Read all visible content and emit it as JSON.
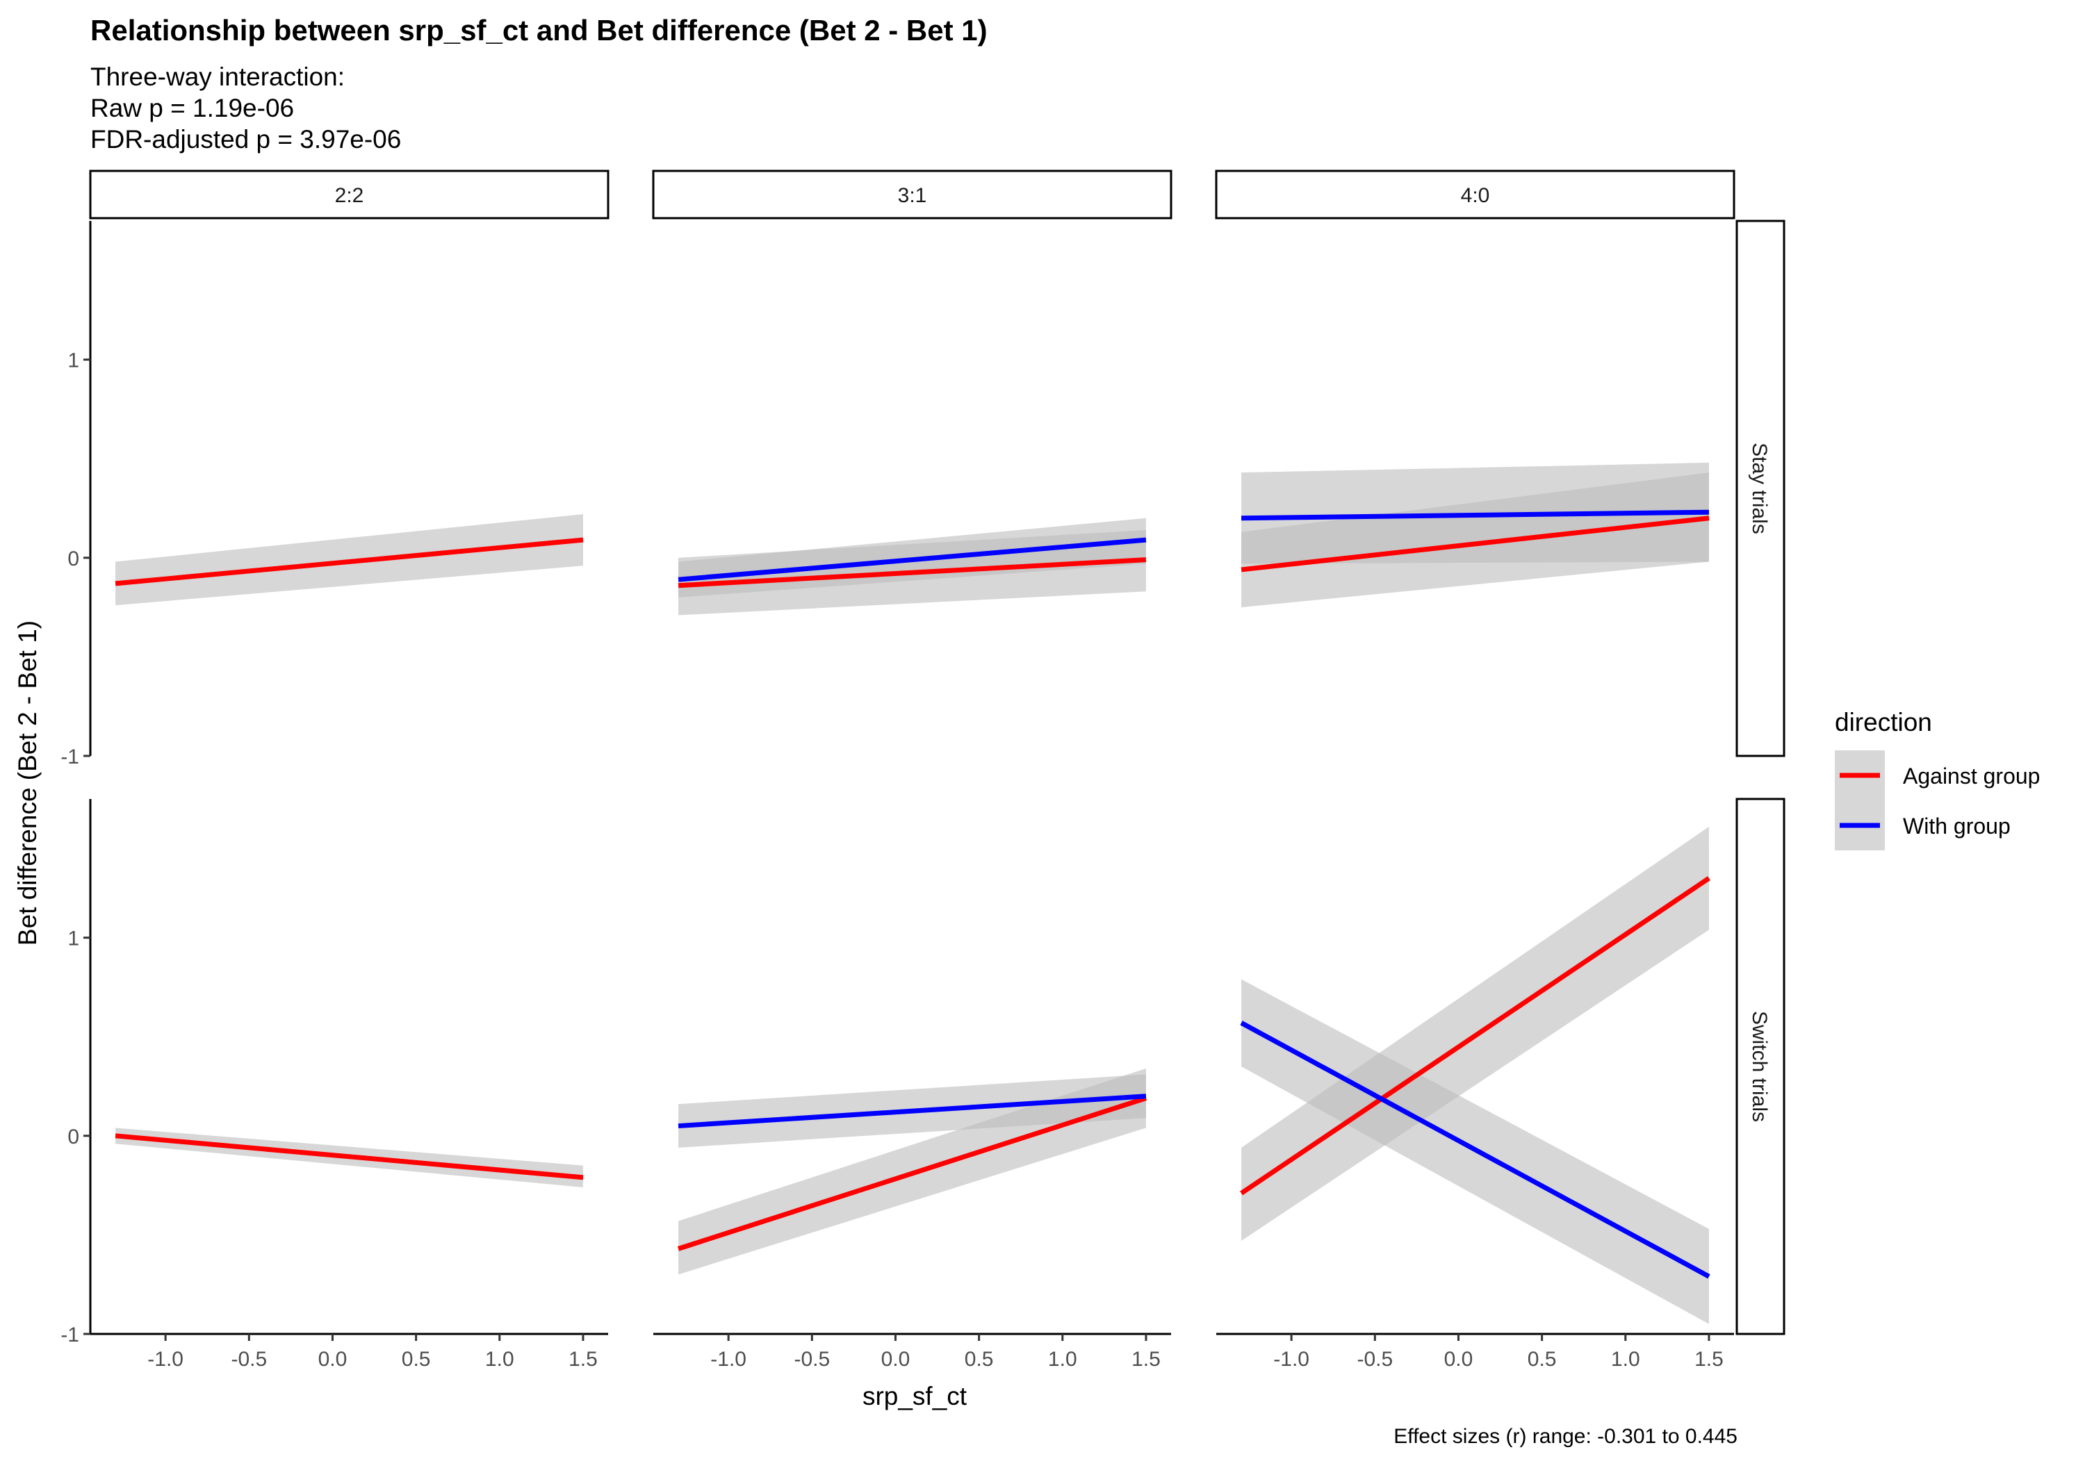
{
  "chart_data": {
    "type": "line",
    "title": "Relationship between srp_sf_ct and Bet difference (Bet 2 - Bet 1)",
    "subtitle": [
      "Three-way interaction:",
      "Raw p = 1.19e-06",
      "FDR-adjusted p = 3.97e-06"
    ],
    "xlabel": "srp_sf_ct",
    "ylabel": "Bet difference (Bet 2 - Bet 1)",
    "caption": "Effect sizes (r) range: -0.301 to 0.445",
    "xlim": [
      -1.45,
      1.65
    ],
    "ylim": [
      -1.0,
      1.7
    ],
    "x_ticks": [
      -1.0,
      -0.5,
      0.0,
      0.5,
      1.0,
      1.5
    ],
    "x_tick_labels": [
      "-1.0",
      "-0.5",
      "0.0",
      "0.5",
      "1.0",
      "1.5"
    ],
    "y_ticks": [
      -1,
      0,
      1
    ],
    "y_tick_labels": [
      "-1",
      "0",
      "1"
    ],
    "col_facets": [
      "2:2",
      "3:1",
      "4:0"
    ],
    "row_facets": [
      "Stay trials",
      "Switch trials"
    ],
    "legend": {
      "title": "direction",
      "position": "right",
      "entries": [
        {
          "name": "Against group",
          "color": "#ff0000"
        },
        {
          "name": "With group",
          "color": "#0000ff"
        }
      ]
    },
    "ribbon_color": "#bdbdbd",
    "panels": [
      {
        "row": 0,
        "col": 0,
        "series": [
          {
            "name": "Against group",
            "color": "#ff0000",
            "x": [
              -1.3,
              1.5
            ],
            "y": [
              -0.13,
              0.09
            ],
            "lower": [
              -0.24,
              -0.04
            ],
            "upper": [
              -0.02,
              0.22
            ]
          }
        ]
      },
      {
        "row": 0,
        "col": 1,
        "series": [
          {
            "name": "Against group",
            "color": "#ff0000",
            "x": [
              -1.3,
              1.5
            ],
            "y": [
              -0.14,
              -0.01
            ],
            "lower": [
              -0.29,
              -0.17
            ],
            "upper": [
              0.0,
              0.14
            ]
          },
          {
            "name": "With group",
            "color": "#0000ff",
            "x": [
              -1.3,
              1.5
            ],
            "y": [
              -0.11,
              0.09
            ],
            "lower": [
              -0.2,
              -0.03
            ],
            "upper": [
              -0.02,
              0.2
            ]
          }
        ]
      },
      {
        "row": 0,
        "col": 2,
        "series": [
          {
            "name": "Against group",
            "color": "#ff0000",
            "x": [
              -1.3,
              1.5
            ],
            "y": [
              -0.06,
              0.2
            ],
            "lower": [
              -0.25,
              -0.02
            ],
            "upper": [
              0.13,
              0.43
            ]
          },
          {
            "name": "With group",
            "color": "#0000ff",
            "x": [
              -1.3,
              1.5
            ],
            "y": [
              0.2,
              0.23
            ],
            "lower": [
              -0.03,
              -0.02
            ],
            "upper": [
              0.43,
              0.48
            ]
          }
        ]
      },
      {
        "row": 1,
        "col": 0,
        "series": [
          {
            "name": "Against group",
            "color": "#ff0000",
            "x": [
              -1.3,
              1.5
            ],
            "y": [
              0.0,
              -0.21
            ],
            "lower": [
              -0.04,
              -0.26
            ],
            "upper": [
              0.04,
              -0.15
            ]
          }
        ]
      },
      {
        "row": 1,
        "col": 1,
        "series": [
          {
            "name": "Against group",
            "color": "#ff0000",
            "x": [
              -1.3,
              1.5
            ],
            "y": [
              -0.57,
              0.19
            ],
            "lower": [
              -0.7,
              0.04
            ],
            "upper": [
              -0.43,
              0.34
            ]
          },
          {
            "name": "With group",
            "color": "#0000ff",
            "x": [
              -1.3,
              1.5
            ],
            "y": [
              0.05,
              0.2
            ],
            "lower": [
              -0.06,
              0.09
            ],
            "upper": [
              0.16,
              0.31
            ]
          }
        ]
      },
      {
        "row": 1,
        "col": 2,
        "series": [
          {
            "name": "Against group",
            "color": "#ff0000",
            "x": [
              -1.3,
              1.5
            ],
            "y": [
              -0.29,
              1.3
            ],
            "lower": [
              -0.53,
              1.04
            ],
            "upper": [
              -0.06,
              1.56
            ]
          },
          {
            "name": "With group",
            "color": "#0000ff",
            "x": [
              -1.3,
              1.5
            ],
            "y": [
              0.57,
              -0.71
            ],
            "lower": [
              0.35,
              -0.95
            ],
            "upper": [
              0.79,
              -0.47
            ]
          }
        ]
      }
    ]
  }
}
